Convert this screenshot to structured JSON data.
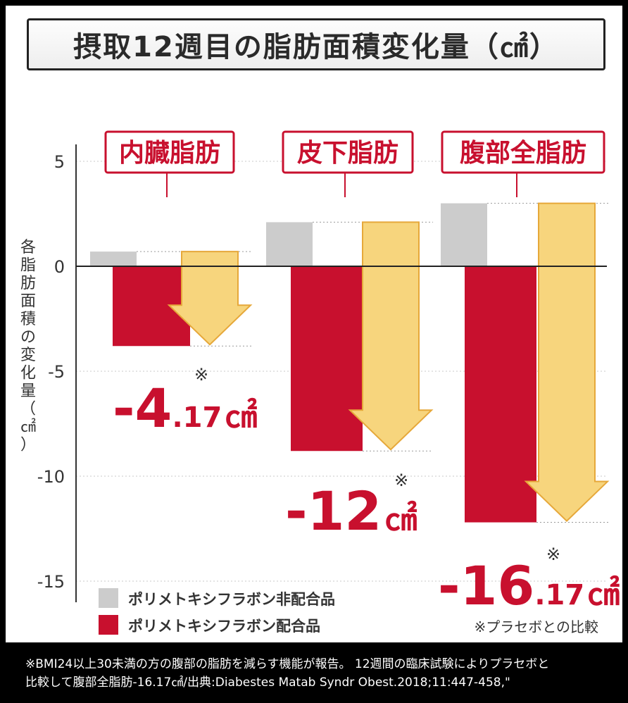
{
  "chart_data": {
    "type": "bar",
    "title": "摂取12週目の脂肪面積変化量（㎠）",
    "ylabel": "各脂肪面積の変化量（㎠）",
    "ylim": [
      -17,
      5.5
    ],
    "yticks": [
      5,
      0,
      -5,
      -10,
      -15
    ],
    "ytick_labels": [
      "5",
      "0",
      "-5",
      "-10",
      "-15"
    ],
    "categories": [
      "内臓脂肪",
      "皮下脂肪",
      "腹部全脂肪"
    ],
    "series": [
      {
        "name": "ポリメトキシフラボン非配合品",
        "color": "#cccccc",
        "values": [
          0.7,
          2.1,
          3.0
        ]
      },
      {
        "name": "ポリメトキシフラボン配合品",
        "color": "#c8102e",
        "values": [
          -3.8,
          -8.8,
          -12.2
        ]
      }
    ],
    "annotations": [
      {
        "big": "-4",
        "small": ".17",
        "unit": "㎠",
        "mark": "※"
      },
      {
        "big": "-12",
        "small": "",
        "unit": "㎠",
        "mark": "※"
      },
      {
        "big": "-16",
        "small": ".17",
        "unit": "㎠",
        "mark": "※"
      }
    ],
    "note": "※プラセボとの比較",
    "colors": {
      "accent": "#c8102e",
      "arrow_fill": "#f7d57d",
      "arrow_stroke": "#e6a83a",
      "placebo": "#cccccc"
    }
  },
  "footer": {
    "line1": "※BMI24以上30未満の方の腹部の脂肪を減らす機能が報告。 12週間の臨床試験によりプラセボと",
    "line2": "比較して腹部全脂肪-16.17㎠/出典:Diabestes Matab Syndr Obest.2018;11:447-458,\""
  }
}
